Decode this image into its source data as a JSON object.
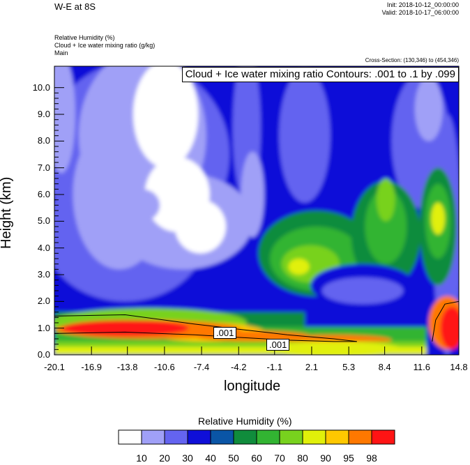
{
  "header": {
    "main_title": "W-E at 8S",
    "init": "Init: 2018-10-12_00:00:00",
    "valid": "Valid: 2018-10-17_06:00:00",
    "var1": "Relative Humidity   (%)",
    "var2": "Cloud + Ice water mixing ratio   (g/kg)",
    "var3": "Main",
    "cross_section": "Cross-Section: (130,346) to (454,346)"
  },
  "chart_data": {
    "type": "heatmap",
    "title": "W-E at 8S",
    "xlabel": "longitude",
    "ylabel": "Height (km)",
    "xlim": [
      -20.1,
      14.8
    ],
    "ylim": [
      0.0,
      10.8
    ],
    "x_ticks": [
      "-20.1",
      "-16.9",
      "-13.8",
      "-10.6",
      "-7.4",
      "-4.2",
      "-1.1",
      "2.1",
      "5.3",
      "8.4",
      "11.6",
      "14.8"
    ],
    "y_ticks": [
      "0.0",
      "1.0",
      "2.0",
      "3.0",
      "4.0",
      "5.0",
      "6.0",
      "7.0",
      "8.0",
      "9.0",
      "10.0"
    ],
    "contour_info": "Cloud + Ice water mixing ratio Contours: .001 to .1 by .099",
    "contour_labels": [
      ".001",
      ".001"
    ],
    "colorbar": {
      "title": "Relative Humidity  (%)",
      "labels": [
        "10",
        "20",
        "30",
        "40",
        "50",
        "60",
        "70",
        "80",
        "90",
        "95",
        "98"
      ],
      "colors": [
        "#ffffff",
        "#a0a0f7",
        "#6464f0",
        "#0f0fd8",
        "#0a55a6",
        "#108c3c",
        "#32b432",
        "#78d21e",
        "#e1f00a",
        "#ffc800",
        "#ff7800",
        "#ff1414"
      ]
    }
  }
}
